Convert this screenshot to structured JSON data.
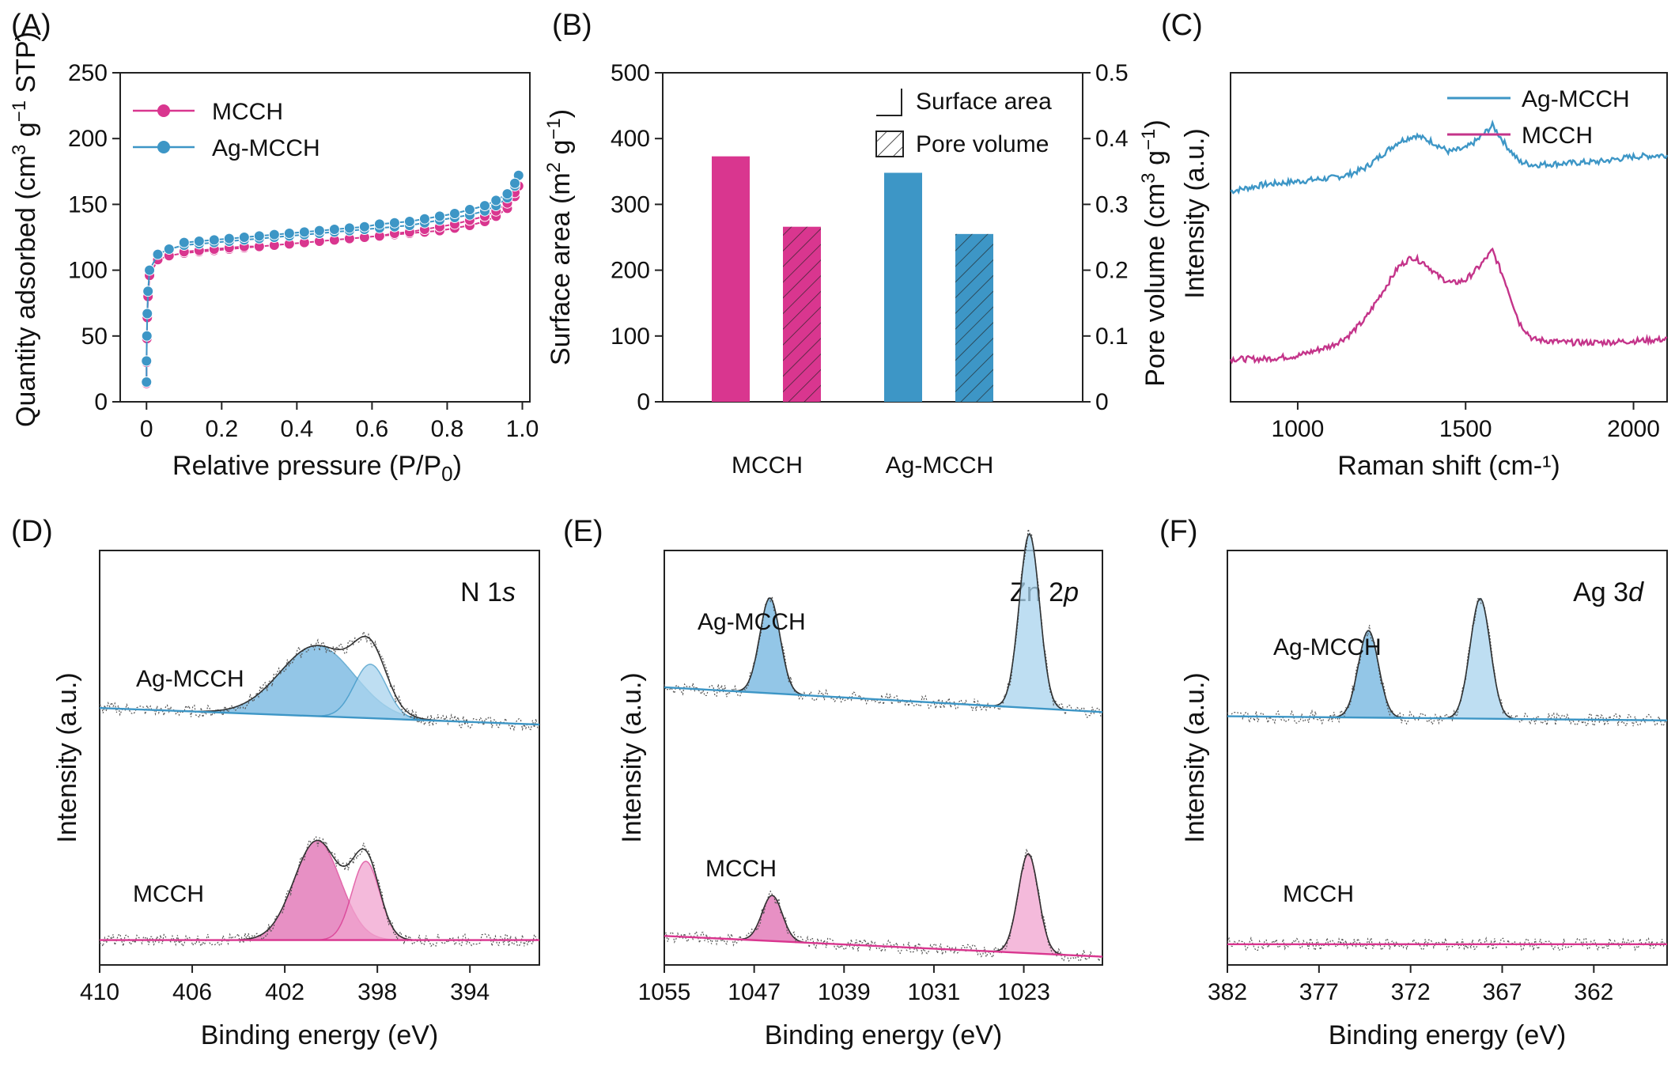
{
  "colors": {
    "mcch": "#d9368f",
    "ag": "#3d96c6",
    "ag_line": "#2f8bc9",
    "noise": "#555555"
  },
  "chart_data": [
    {
      "id": "A",
      "type": "scatter",
      "panel_label": "(A)",
      "xlabel_main": "Relative pressure (P/P",
      "xlabel_sub": "0",
      "xlabel_end": ")",
      "ylabel_main": "Quantity adsorbed (cm",
      "ylabel_sup1": "3",
      "ylabel_mid": " g",
      "ylabel_sup2": "−1",
      "ylabel_end": " STP)",
      "xlim": [
        -0.07,
        1.02
      ],
      "ylim": [
        0,
        250
      ],
      "xticks": [
        0,
        0.2,
        0.4,
        0.6,
        0.8,
        1.0
      ],
      "xtick_labels": [
        "0",
        "0.2",
        "0.4",
        "0.6",
        "0.8",
        "1.0"
      ],
      "yticks": [
        0,
        50,
        100,
        150,
        200,
        250
      ],
      "ytick_labels": [
        "0",
        "50",
        "100",
        "150",
        "200",
        "250"
      ],
      "legend_position": "top-left",
      "series": [
        {
          "name": "MCCH",
          "color": "#d9368f",
          "x": [
            0.0,
            0.0,
            0.001,
            0.002,
            0.004,
            0.008,
            0.03,
            0.06,
            0.1,
            0.14,
            0.18,
            0.22,
            0.26,
            0.3,
            0.34,
            0.38,
            0.42,
            0.46,
            0.5,
            0.54,
            0.58,
            0.62,
            0.66,
            0.7,
            0.74,
            0.78,
            0.82,
            0.86,
            0.9,
            0.93,
            0.96,
            0.98,
            0.99,
            0.98,
            0.96,
            0.93,
            0.9,
            0.86,
            0.82,
            0.78,
            0.74,
            0.7,
            0.66,
            0.62,
            0.58,
            0.54,
            0.5,
            0.46,
            0.42,
            0.38,
            0.34,
            0.3,
            0.26,
            0.22,
            0.18,
            0.14,
            0.1
          ],
          "y": [
            14,
            30,
            48,
            64,
            80,
            96,
            108,
            111,
            113,
            114,
            115,
            116,
            117,
            118,
            119,
            120,
            121,
            122,
            123,
            124,
            125,
            126,
            127,
            128,
            129,
            130,
            132,
            134,
            137,
            141,
            147,
            156,
            164,
            159,
            151,
            145,
            141,
            138,
            135,
            133,
            131,
            129,
            128,
            126,
            125,
            124,
            123,
            122,
            121,
            120,
            119,
            118,
            118,
            117,
            116,
            115,
            114
          ]
        },
        {
          "name": "Ag-MCCH",
          "color": "#3d96c6",
          "x": [
            0.0,
            0.0,
            0.001,
            0.002,
            0.004,
            0.008,
            0.03,
            0.06,
            0.1,
            0.14,
            0.18,
            0.22,
            0.26,
            0.3,
            0.34,
            0.38,
            0.42,
            0.46,
            0.5,
            0.54,
            0.58,
            0.62,
            0.66,
            0.7,
            0.74,
            0.78,
            0.82,
            0.86,
            0.9,
            0.93,
            0.96,
            0.98,
            0.99,
            0.98,
            0.96,
            0.93,
            0.9,
            0.86,
            0.82,
            0.78,
            0.74,
            0.7,
            0.66,
            0.62,
            0.58,
            0.54,
            0.5,
            0.46,
            0.42,
            0.38,
            0.34,
            0.3,
            0.26,
            0.22,
            0.18,
            0.14,
            0.1
          ],
          "y": [
            15,
            31,
            50,
            67,
            84,
            100,
            112,
            116,
            119,
            120,
            121,
            122,
            123,
            124,
            125,
            126,
            127,
            128,
            129,
            130,
            131,
            132,
            133,
            134,
            136,
            138,
            140,
            142,
            145,
            149,
            155,
            164,
            172,
            166,
            158,
            153,
            149,
            146,
            143,
            141,
            139,
            137,
            136,
            135,
            133,
            132,
            131,
            130,
            129,
            128,
            127,
            126,
            125,
            124,
            123,
            122,
            121
          ]
        }
      ]
    },
    {
      "id": "B",
      "type": "bar",
      "panel_label": "(B)",
      "ylabel_main": "Surface area (m",
      "ylabel_sup": "2",
      "ylabel_mid": " g",
      "ylabel_sup2": "−1",
      "ylabel_end": ")",
      "y2label_main": "Pore volume (cm",
      "y2label_sup": "3",
      "y2label_mid": " g",
      "y2label_sup2": "−1",
      "y2label_end": ")",
      "categories": [
        "MCCH",
        "Ag-MCCH"
      ],
      "ylim": [
        0,
        500
      ],
      "y2lim": [
        0,
        0.5
      ],
      "yticks": [
        0,
        100,
        200,
        300,
        400,
        500
      ],
      "ytick_labels": [
        "0",
        "100",
        "200",
        "300",
        "400",
        "500"
      ],
      "y2ticks": [
        0,
        0.1,
        0.2,
        0.3,
        0.4,
        0.5
      ],
      "y2tick_labels": [
        "0",
        "0.1",
        "0.2",
        "0.3",
        "0.4",
        "0.5"
      ],
      "legend_position": "top-right",
      "series": [
        {
          "name": "Surface area",
          "axis": "left",
          "values": [
            373,
            348
          ]
        },
        {
          "name": "Pore volume",
          "axis": "right",
          "values": [
            0.266,
            0.255
          ]
        }
      ]
    },
    {
      "id": "C",
      "type": "line",
      "panel_label": "(C)",
      "xlabel": "Raman shift (cm-¹)",
      "ylabel": "Intensity (a.u.)",
      "xlim": [
        800,
        2100
      ],
      "xticks": [
        1000,
        1500,
        2000
      ],
      "xtick_labels": [
        "1000",
        "1500",
        "2000"
      ],
      "legend_position": "top-right",
      "series": [
        {
          "name": "Ag-MCCH",
          "color": "#3d96c6",
          "x": [
            800,
            900,
            1000,
            1100,
            1150,
            1200,
            1250,
            1300,
            1350,
            1400,
            1450,
            1500,
            1540,
            1580,
            1620,
            1660,
            1700,
            1800,
            1900,
            2000,
            2100
          ],
          "y": [
            0.64,
            0.66,
            0.67,
            0.68,
            0.69,
            0.71,
            0.75,
            0.79,
            0.81,
            0.79,
            0.76,
            0.77,
            0.8,
            0.84,
            0.78,
            0.73,
            0.72,
            0.725,
            0.73,
            0.745,
            0.75
          ]
        },
        {
          "name": "MCCH",
          "color": "#c4348a",
          "x": [
            800,
            900,
            1000,
            1100,
            1150,
            1200,
            1250,
            1300,
            1340,
            1380,
            1420,
            1460,
            1500,
            1540,
            1580,
            1620,
            1660,
            1700,
            1800,
            1900,
            2000,
            2100
          ],
          "y": [
            0.13,
            0.13,
            0.14,
            0.17,
            0.2,
            0.25,
            0.33,
            0.41,
            0.44,
            0.42,
            0.38,
            0.36,
            0.37,
            0.41,
            0.46,
            0.36,
            0.24,
            0.19,
            0.18,
            0.18,
            0.185,
            0.19
          ]
        }
      ]
    },
    {
      "id": "D",
      "type": "area",
      "panel_label": "(D)",
      "title_main": "N 1",
      "title_italic": "s",
      "xlabel": "Binding energy (eV)",
      "ylabel": "Intensity (a.u.)",
      "xlim": [
        410,
        391
      ],
      "xticks": [
        410,
        406,
        402,
        398,
        394
      ],
      "xtick_labels": [
        "410",
        "406",
        "402",
        "398",
        "394"
      ],
      "series_labels": [
        "Ag-MCCH",
        "MCCH"
      ],
      "series": [
        {
          "name": "Ag-MCCH",
          "baseline": [
            0.62,
            0.58
          ],
          "peaks": [
            {
              "center": 400.6,
              "height": 0.17,
              "width": 1.6
            },
            {
              "center": 398.3,
              "height": 0.13,
              "width": 0.7
            }
          ]
        },
        {
          "name": "MCCH",
          "baseline": [
            0.06,
            0.06
          ],
          "peaks": [
            {
              "center": 400.6,
              "height": 0.24,
              "width": 1.0
            },
            {
              "center": 398.5,
              "height": 0.19,
              "width": 0.6
            }
          ]
        }
      ]
    },
    {
      "id": "E",
      "type": "area",
      "panel_label": "(E)",
      "title_main": "Zn 2",
      "title_italic": "p",
      "xlabel": "Binding energy (eV)",
      "ylabel": "Intensity (a.u.)",
      "xlim": [
        1055,
        1016
      ],
      "xticks": [
        1055,
        1047,
        1039,
        1031,
        1023
      ],
      "xtick_labels": [
        "1055",
        "1047",
        "1039",
        "1031",
        "1023"
      ],
      "series_labels": [
        "Ag-MCCH",
        "MCCH"
      ],
      "series": [
        {
          "name": "Ag-MCCH",
          "baseline": [
            0.67,
            0.61
          ],
          "peaks": [
            {
              "center": 1045.6,
              "height": 0.23,
              "width": 0.9
            },
            {
              "center": 1022.5,
              "height": 0.42,
              "width": 0.9
            }
          ]
        },
        {
          "name": "MCCH",
          "baseline": [
            0.07,
            0.02
          ],
          "peaks": [
            {
              "center": 1045.4,
              "height": 0.11,
              "width": 0.9
            },
            {
              "center": 1022.6,
              "height": 0.24,
              "width": 0.9
            }
          ]
        }
      ]
    },
    {
      "id": "F",
      "type": "area",
      "panel_label": "(F)",
      "title_main": "Ag 3",
      "title_italic": "d",
      "xlabel": "Binding energy (eV)",
      "ylabel": "Intensity (a.u.)",
      "xlim": [
        382,
        358
      ],
      "xticks": [
        382,
        377,
        372,
        367,
        362
      ],
      "xtick_labels": [
        "382",
        "377",
        "372",
        "367",
        "362"
      ],
      "series_labels": [
        "Ag-MCCH",
        "MCCH"
      ],
      "series": [
        {
          "name": "Ag-MCCH",
          "baseline": [
            0.6,
            0.59
          ],
          "peaks": [
            {
              "center": 374.3,
              "height": 0.21,
              "width": 0.55
            },
            {
              "center": 368.2,
              "height": 0.29,
              "width": 0.55
            }
          ]
        },
        {
          "name": "MCCH",
          "baseline": [
            0.05,
            0.05
          ],
          "peaks": []
        }
      ]
    }
  ]
}
